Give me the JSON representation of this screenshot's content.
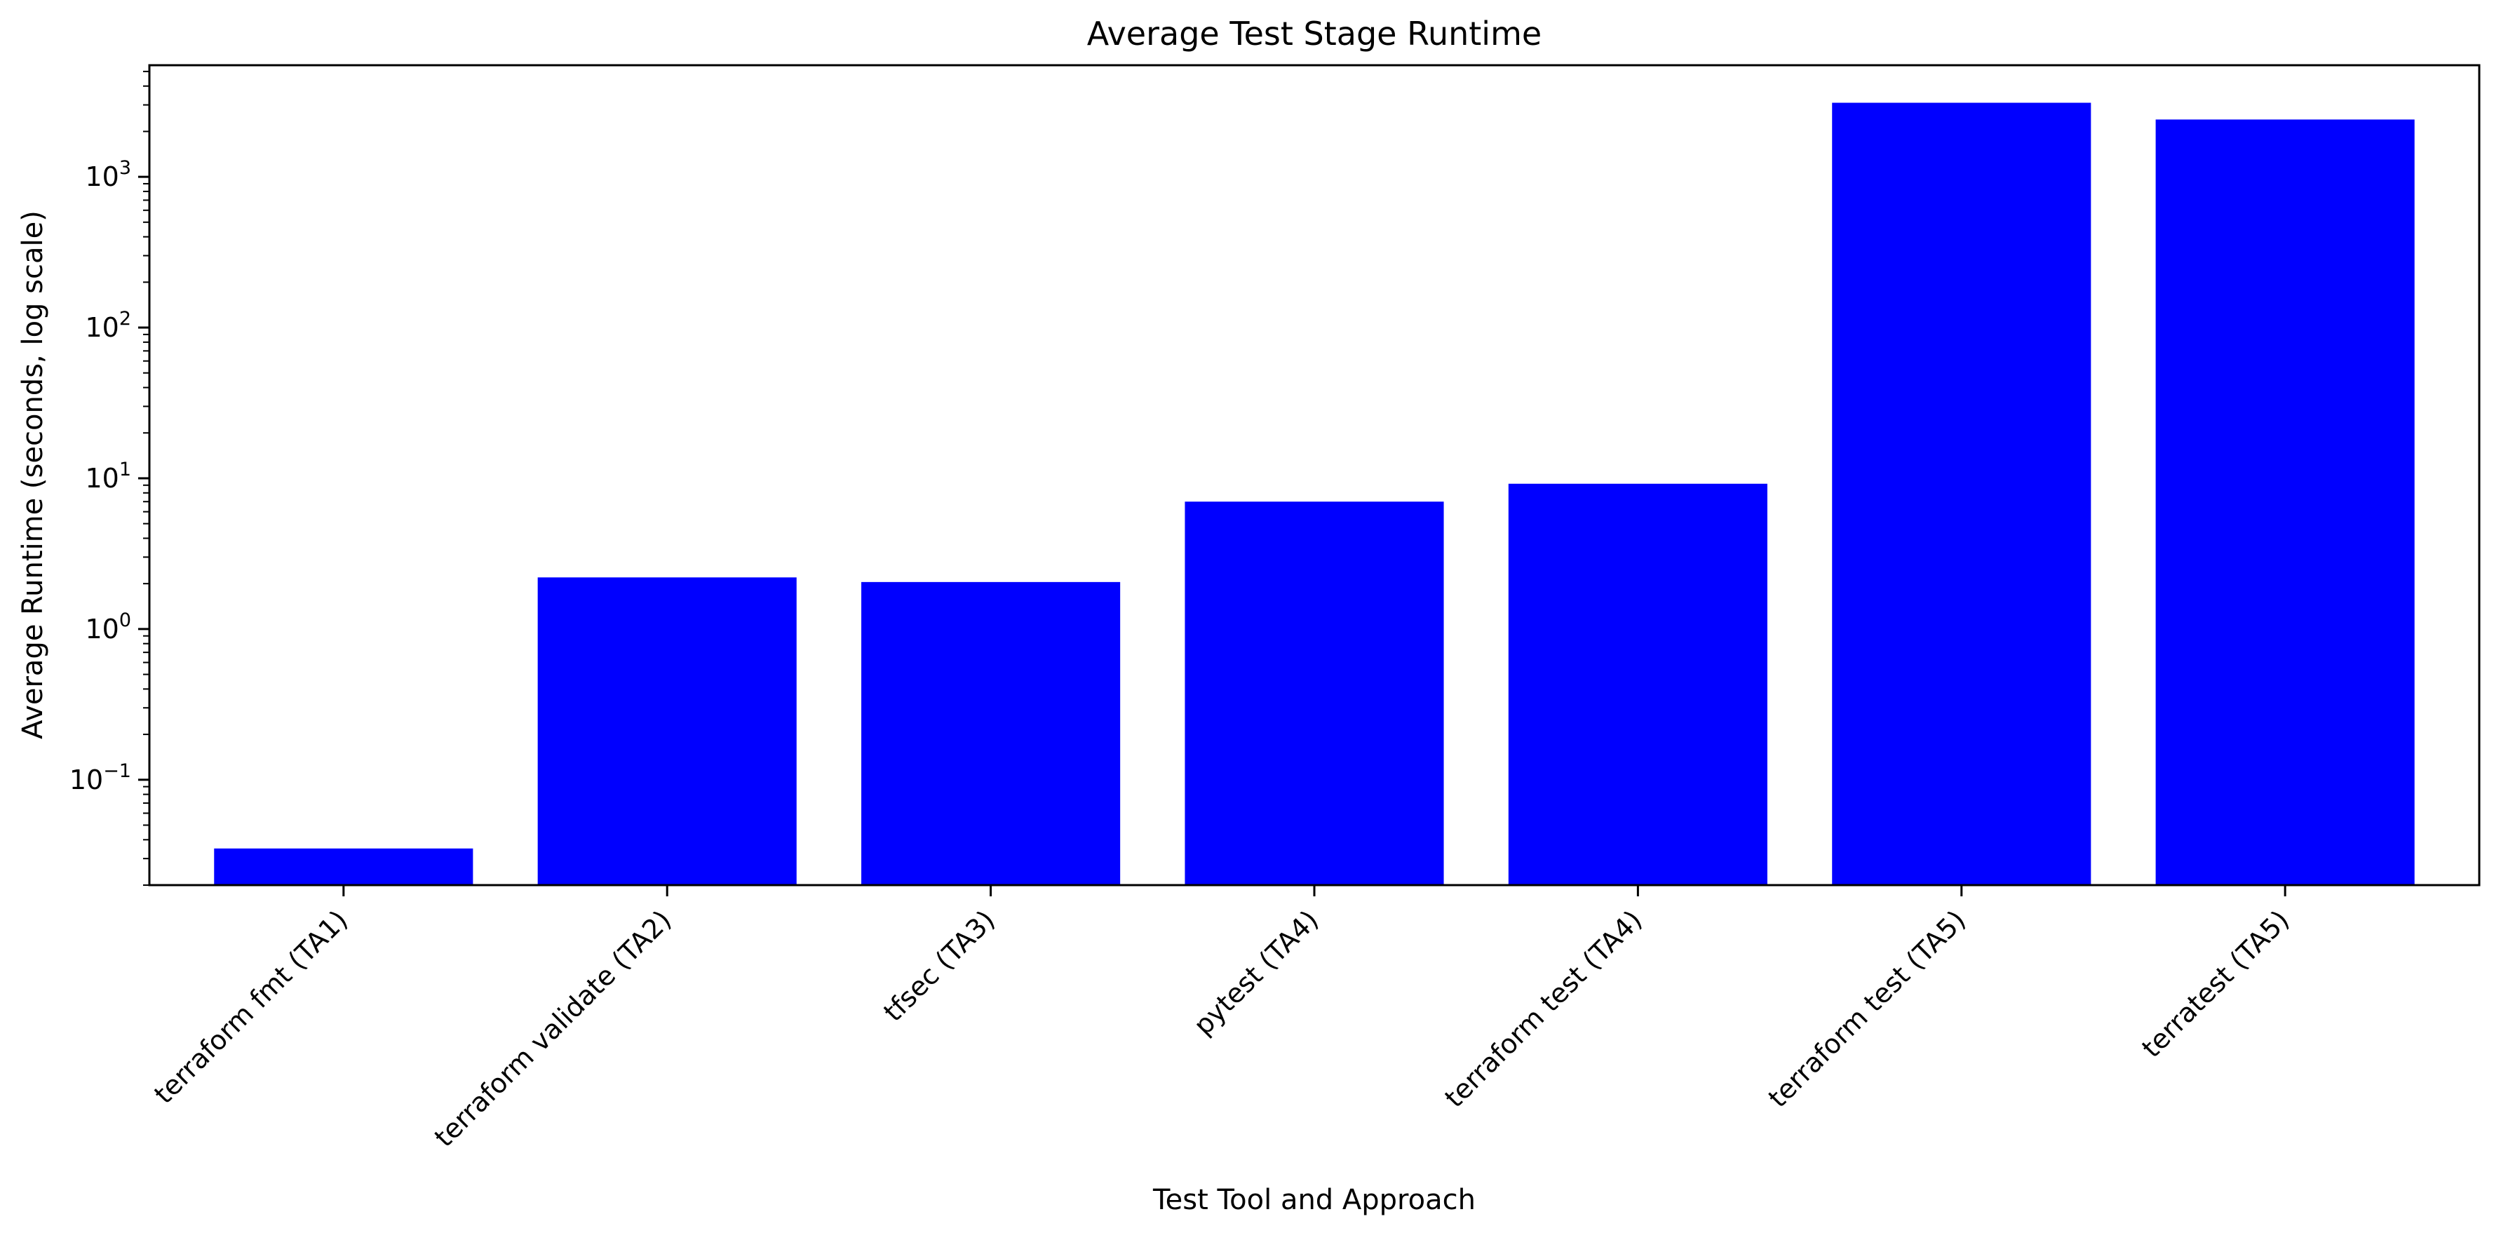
{
  "chart_data": {
    "type": "bar",
    "title": "Average Test Stage Runtime",
    "xlabel": "Test Tool and Approach",
    "ylabel": "Average Runtime (seconds, log scale)",
    "yscale": "log",
    "ylim": [
      0.02,
      5500
    ],
    "yticks": [
      {
        "value": 0.1,
        "base": "10",
        "exp": "−1"
      },
      {
        "value": 1,
        "base": "10",
        "exp": "0"
      },
      {
        "value": 10,
        "base": "10",
        "exp": "1"
      },
      {
        "value": 100,
        "base": "10",
        "exp": "2"
      },
      {
        "value": 1000,
        "base": "10",
        "exp": "3"
      }
    ],
    "categories": [
      "terraform fmt (TA1)",
      "terraform validate (TA2)",
      "tfsec (TA3)",
      "pytest (TA4)",
      "terraform test (TA4)",
      "terraform test (TA5)",
      "terratest (TA5)"
    ],
    "values": [
      0.035,
      2.2,
      2.05,
      7.0,
      9.2,
      3100,
      2400
    ],
    "bar_color": "#0000ff",
    "grid": false,
    "legend": "none"
  }
}
